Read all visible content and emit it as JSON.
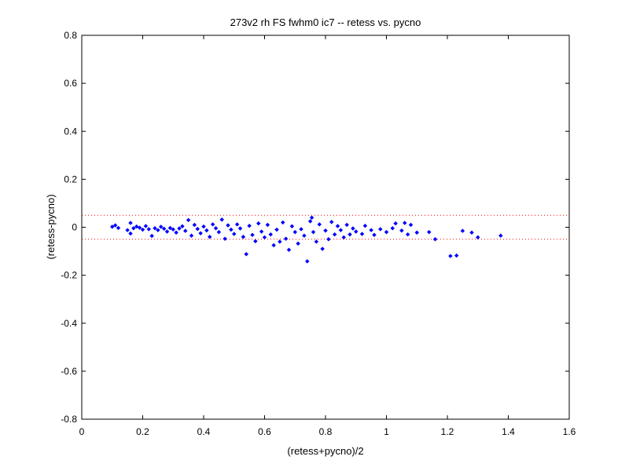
{
  "chart_data": {
    "type": "scatter",
    "title": "273v2 rh FS fwhm0 ic7 -- retess vs. pycno",
    "xlabel": "(retess+pycno)/2",
    "ylabel": "(retess-pycno)",
    "xlim": [
      0,
      1.6
    ],
    "ylim": [
      -0.8,
      0.8
    ],
    "x_ticks": [
      0,
      0.2,
      0.4,
      0.6,
      0.8,
      1,
      1.2,
      1.4,
      1.6
    ],
    "x_tick_labels": [
      "0",
      "0.2",
      "0.4",
      "0.6",
      "0.8",
      "1",
      "1.2",
      "1.4",
      "1.6"
    ],
    "y_ticks": [
      -0.8,
      -0.6,
      -0.4,
      -0.2,
      0,
      0.2,
      0.4,
      0.6,
      0.8
    ],
    "y_tick_labels": [
      "-0.8",
      "-0.6",
      "-0.4",
      "-0.2",
      "0",
      "0.2",
      "0.4",
      "0.6",
      "0.8"
    ],
    "grid": false,
    "reference_lines": [
      {
        "y": 0.05,
        "style": "dotted",
        "color": "#ff0000"
      },
      {
        "y": -0.05,
        "style": "dotted",
        "color": "#ff0000"
      }
    ],
    "marker_color": "#0000ff",
    "series": [
      {
        "points": [
          [
            0.1,
            0.002
          ],
          [
            0.11,
            0.008
          ],
          [
            0.12,
            -0.003
          ],
          [
            0.15,
            -0.012
          ],
          [
            0.16,
            0.018
          ],
          [
            0.16,
            -0.026
          ],
          [
            0.17,
            -0.004
          ],
          [
            0.18,
            0.003
          ],
          [
            0.19,
            -0.002
          ],
          [
            0.2,
            -0.01
          ],
          [
            0.21,
            0.005
          ],
          [
            0.22,
            -0.008
          ],
          [
            0.23,
            -0.036
          ],
          [
            0.24,
            -0.004
          ],
          [
            0.25,
            -0.012
          ],
          [
            0.26,
            0.002
          ],
          [
            0.27,
            -0.006
          ],
          [
            0.28,
            -0.018
          ],
          [
            0.29,
            -0.003
          ],
          [
            0.3,
            -0.009
          ],
          [
            0.31,
            -0.022
          ],
          [
            0.32,
            -0.005
          ],
          [
            0.33,
            0.004
          ],
          [
            0.34,
            -0.015
          ],
          [
            0.35,
            0.03
          ],
          [
            0.36,
            -0.035
          ],
          [
            0.37,
            0.01
          ],
          [
            0.38,
            -0.007
          ],
          [
            0.39,
            -0.025
          ],
          [
            0.4,
            0.003
          ],
          [
            0.41,
            -0.013
          ],
          [
            0.42,
            -0.04
          ],
          [
            0.43,
            0.012
          ],
          [
            0.44,
            -0.004
          ],
          [
            0.45,
            -0.02
          ],
          [
            0.46,
            0.032
          ],
          [
            0.47,
            -0.048
          ],
          [
            0.48,
            0.008
          ],
          [
            0.49,
            -0.01
          ],
          [
            0.5,
            -0.028
          ],
          [
            0.51,
            0.012
          ],
          [
            0.52,
            -0.005
          ],
          [
            0.53,
            -0.04
          ],
          [
            0.54,
            -0.112
          ],
          [
            0.55,
            0.006
          ],
          [
            0.56,
            -0.032
          ],
          [
            0.57,
            -0.058
          ],
          [
            0.58,
            0.016
          ],
          [
            0.59,
            -0.018
          ],
          [
            0.6,
            -0.042
          ],
          [
            0.61,
            0.01
          ],
          [
            0.62,
            -0.03
          ],
          [
            0.63,
            -0.075
          ],
          [
            0.64,
            -0.01
          ],
          [
            0.65,
            -0.06
          ],
          [
            0.66,
            0.02
          ],
          [
            0.67,
            -0.048
          ],
          [
            0.68,
            -0.094
          ],
          [
            0.69,
            0.004
          ],
          [
            0.7,
            -0.02
          ],
          [
            0.71,
            -0.068
          ],
          [
            0.72,
            -0.008
          ],
          [
            0.73,
            -0.035
          ],
          [
            0.74,
            -0.142
          ],
          [
            0.75,
            0.025
          ],
          [
            0.755,
            0.04
          ],
          [
            0.76,
            -0.02
          ],
          [
            0.77,
            -0.06
          ],
          [
            0.78,
            0.012
          ],
          [
            0.79,
            -0.09
          ],
          [
            0.8,
            -0.014
          ],
          [
            0.81,
            -0.05
          ],
          [
            0.82,
            0.022
          ],
          [
            0.83,
            -0.03
          ],
          [
            0.84,
            0.005
          ],
          [
            0.85,
            -0.012
          ],
          [
            0.86,
            -0.042
          ],
          [
            0.87,
            0.01
          ],
          [
            0.88,
            -0.03
          ],
          [
            0.89,
            -0.005
          ],
          [
            0.9,
            -0.018
          ],
          [
            0.92,
            -0.028
          ],
          [
            0.93,
            0.006
          ],
          [
            0.95,
            -0.012
          ],
          [
            0.96,
            -0.032
          ],
          [
            0.98,
            -0.008
          ],
          [
            1.0,
            -0.02
          ],
          [
            1.02,
            -0.004
          ],
          [
            1.03,
            0.016
          ],
          [
            1.05,
            -0.014
          ],
          [
            1.06,
            0.018
          ],
          [
            1.07,
            -0.03
          ],
          [
            1.08,
            0.01
          ],
          [
            1.1,
            -0.022
          ],
          [
            1.14,
            -0.02
          ],
          [
            1.16,
            -0.05
          ],
          [
            1.21,
            -0.12
          ],
          [
            1.23,
            -0.118
          ],
          [
            1.25,
            -0.015
          ],
          [
            1.28,
            -0.022
          ],
          [
            1.3,
            -0.042
          ],
          [
            1.375,
            -0.035
          ]
        ]
      }
    ]
  }
}
